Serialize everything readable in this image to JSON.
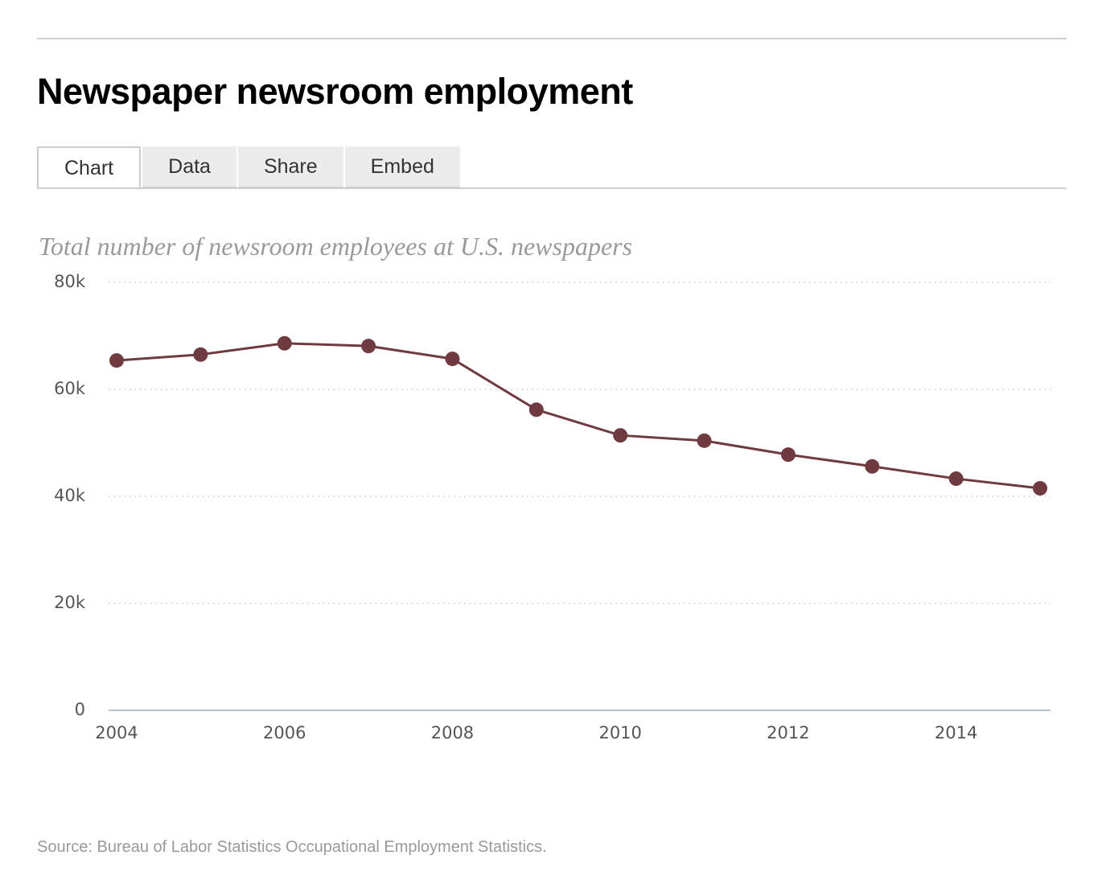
{
  "tabs": [
    "Chart",
    "Data",
    "Share",
    "Embed"
  ],
  "source": "Source: Bureau of Labor Statistics Occupational Employment Statistics.",
  "chart_data": {
    "type": "line",
    "title": "Newspaper newsroom employment",
    "subtitle": "Total number of newsroom employees at U.S. newspapers",
    "x": [
      2004,
      2005,
      2006,
      2007,
      2008,
      2009,
      2010,
      2011,
      2012,
      2013,
      2014,
      2015
    ],
    "series": [
      {
        "name": "Newsroom employees",
        "color": "#6f3a40",
        "values": [
          65400,
          66500,
          68600,
          68100,
          65700,
          56200,
          51400,
          50400,
          47800,
          45600,
          43300,
          41500
        ]
      }
    ],
    "xlim": [
      2004,
      2015
    ],
    "xticks": [
      2004,
      2006,
      2008,
      2010,
      2012,
      2014
    ],
    "ylim": [
      0,
      80000
    ],
    "yticks": [
      0,
      {
        "value": 20000,
        "label": "20k"
      },
      {
        "value": 40000,
        "label": "40k"
      },
      {
        "value": 60000,
        "label": "60k"
      },
      {
        "value": 80000,
        "label": "80k"
      }
    ],
    "grid": true
  }
}
